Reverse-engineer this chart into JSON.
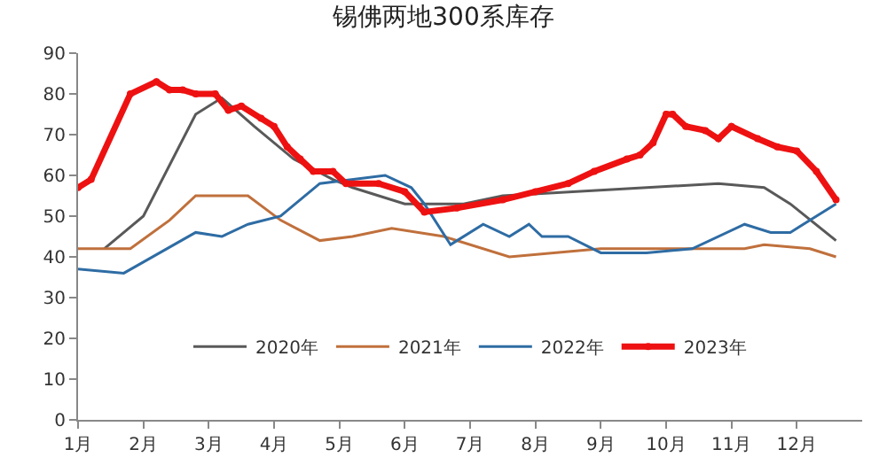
{
  "chart_data": {
    "type": "line",
    "title": "锡佛两地300系库存",
    "xlim": [
      1,
      13
    ],
    "ylim": [
      0,
      90
    ],
    "xticks": [
      {
        "value": 1,
        "label": "1月"
      },
      {
        "value": 2,
        "label": "2月"
      },
      {
        "value": 3,
        "label": "3月"
      },
      {
        "value": 4,
        "label": "4月"
      },
      {
        "value": 5,
        "label": "5月"
      },
      {
        "value": 6,
        "label": "6月"
      },
      {
        "value": 7,
        "label": "7月"
      },
      {
        "value": 8,
        "label": "8月"
      },
      {
        "value": 9,
        "label": "9月"
      },
      {
        "value": 10,
        "label": "10月"
      },
      {
        "value": 11,
        "label": "11月"
      },
      {
        "value": 12,
        "label": "12月"
      }
    ],
    "yticks": [
      0,
      10,
      20,
      30,
      40,
      50,
      60,
      70,
      80,
      90
    ],
    "grid": false,
    "legend": "bottom",
    "line_style": "solid",
    "series": [
      {
        "name": "2020年",
        "color": "#595959",
        "x": [
          1.4,
          2.0,
          2.8,
          3.2,
          3.7,
          4.3,
          4.9,
          5.2,
          6.0,
          6.9,
          7.5,
          10.8,
          11.5,
          11.9,
          12.6
        ],
        "values": [
          42,
          50,
          75,
          79,
          72,
          64,
          59,
          57,
          53,
          53,
          55,
          58,
          57,
          53,
          44
        ]
      },
      {
        "name": "2021年",
        "color": "#c0703c",
        "x": [
          1.0,
          1.8,
          2.4,
          2.8,
          3.6,
          4.1,
          4.7,
          5.2,
          5.8,
          6.6,
          7.6,
          9.0,
          11.2,
          11.5,
          12.2,
          12.6
        ],
        "values": [
          42,
          42,
          49,
          55,
          55,
          49,
          44,
          45,
          47,
          45,
          40,
          42,
          42,
          43,
          42,
          40
        ]
      },
      {
        "name": "2022年",
        "color": "#2e6ca4",
        "x": [
          1.0,
          1.7,
          2.8,
          3.2,
          3.6,
          4.1,
          4.7,
          5.7,
          6.1,
          6.3,
          6.7,
          7.2,
          7.6,
          7.9,
          8.1,
          8.5,
          9.0,
          9.7,
          10.4,
          11.2,
          11.6,
          11.9,
          12.6
        ],
        "values": [
          37,
          36,
          46,
          45,
          48,
          50,
          58,
          60,
          57,
          53,
          43,
          48,
          45,
          48,
          45,
          45,
          41,
          41,
          42,
          48,
          46,
          46,
          53
        ]
      },
      {
        "name": "2023年",
        "color": "#ee1111",
        "marker": "circle",
        "x": [
          1.0,
          1.2,
          1.8,
          2.2,
          2.4,
          2.6,
          2.8,
          3.1,
          3.3,
          3.5,
          3.8,
          4.0,
          4.2,
          4.4,
          4.6,
          4.9,
          5.1,
          5.6,
          6.0,
          6.3,
          6.8,
          7.5,
          8.0,
          8.5,
          8.9,
          9.4,
          9.6,
          9.8,
          10.0,
          10.1,
          10.3,
          10.6,
          10.8,
          11.0,
          11.4,
          11.7,
          12.0,
          12.3,
          12.6
        ],
        "values": [
          57,
          59,
          80,
          83,
          81,
          81,
          80,
          80,
          76,
          77,
          74,
          72,
          67,
          64,
          61,
          61,
          58,
          58,
          56,
          51,
          52,
          54,
          56,
          58,
          61,
          64,
          65,
          68,
          75,
          75,
          72,
          71,
          69,
          72,
          69,
          67,
          66,
          61,
          54
        ]
      }
    ]
  }
}
